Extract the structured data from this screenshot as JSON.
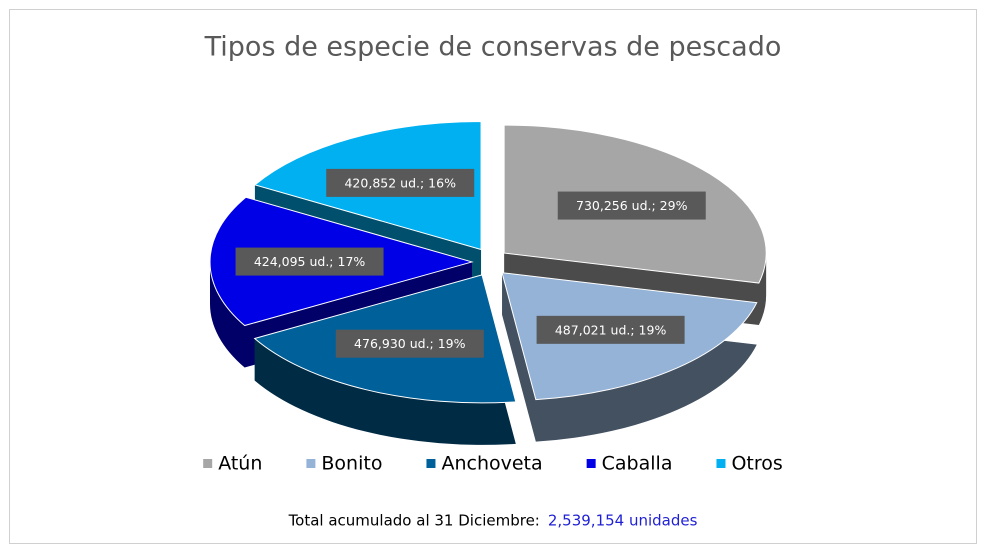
{
  "chart_data": {
    "type": "pie",
    "title": "Tipos de especie de conservas de pescado",
    "categories": [
      "Atún",
      "Bonito",
      "Anchoveta",
      "Caballa",
      "Otros"
    ],
    "values": [
      730256,
      487021,
      476930,
      424095,
      420852
    ],
    "value_labels": [
      "730,256 ud.; 29%",
      "487,021 ud.; 19%",
      "476,930 ud.; 19%",
      "424,095 ud.; 17%",
      "420,852 ud.; 16%"
    ],
    "colors": [
      "#a6a6a6",
      "#95b3d7",
      "#00609a",
      "#0000e6",
      "#00b0f0"
    ],
    "legend": "bottom",
    "footer": {
      "text": "Total acumulado al 31 Diciembre:",
      "total": "2,539,154 unidades"
    }
  }
}
